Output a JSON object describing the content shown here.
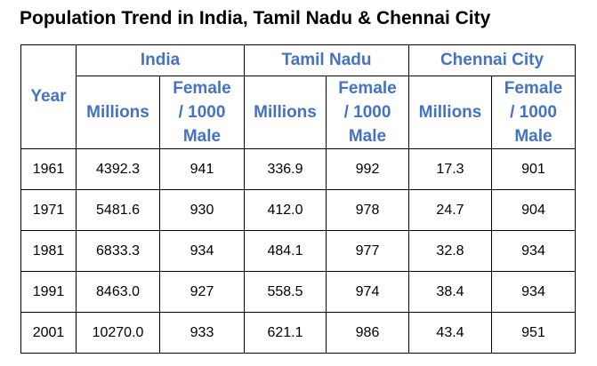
{
  "title": "Population Trend in India, Tamil Nadu & Chennai City",
  "header": {
    "year": "Year",
    "groups": [
      "India",
      "Tamil Nadu",
      "Chennai City"
    ],
    "millions": "Millions",
    "female_lines": [
      "Female",
      "/ 1000",
      "Male"
    ]
  },
  "rows": [
    {
      "year": "1961",
      "india_m": "4392.3",
      "india_f": "941",
      "tn_m": "336.9",
      "tn_f": "992",
      "ch_m": "17.3",
      "ch_f": "901"
    },
    {
      "year": "1971",
      "india_m": "5481.6",
      "india_f": "930",
      "tn_m": "412.0",
      "tn_f": "978",
      "ch_m": "24.7",
      "ch_f": "904"
    },
    {
      "year": "1981",
      "india_m": "6833.3",
      "india_f": "934",
      "tn_m": "484.1",
      "tn_f": "977",
      "ch_m": "32.8",
      "ch_f": "934"
    },
    {
      "year": "1991",
      "india_m": "8463.0",
      "india_f": "927",
      "tn_m": "558.5",
      "tn_f": "974",
      "ch_m": "38.4",
      "ch_f": "934"
    },
    {
      "year": "2001",
      "india_m": "10270.0",
      "india_f": "933",
      "tn_m": "621.1",
      "tn_f": "986",
      "ch_m": "43.4",
      "ch_f": "951"
    }
  ],
  "colors": {
    "header_text": "#4472c4",
    "body_text": "#000000",
    "border": "#000000"
  }
}
